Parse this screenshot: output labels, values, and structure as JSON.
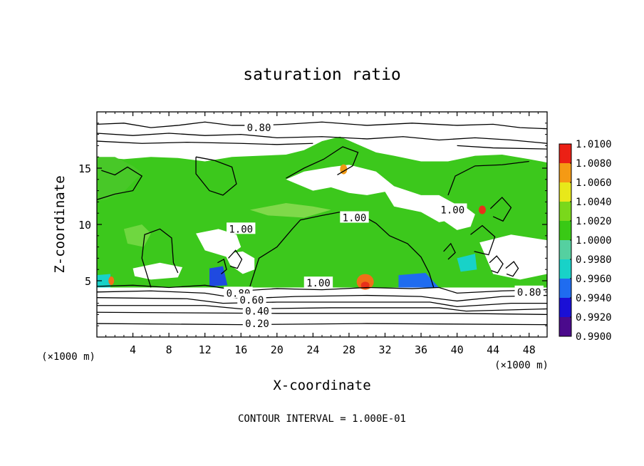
{
  "chart_data": {
    "type": "heatmap",
    "title": "saturation ratio",
    "xlabel": "X-coordinate",
    "ylabel": "Z-coordinate",
    "x_unit": "(×1000 m)",
    "z_unit": "(×1000 m)",
    "footer": "CONTOUR INTERVAL = 1.000E-01",
    "xlim": [
      0,
      50
    ],
    "ylim": [
      0,
      20
    ],
    "x_ticks": [
      4,
      8,
      12,
      16,
      20,
      24,
      28,
      32,
      36,
      40,
      44,
      48
    ],
    "y_ticks": [
      5,
      10,
      15
    ],
    "colorbar": {
      "range": [
        0.99,
        1.01
      ],
      "tick_labels": [
        "0.9900",
        "0.9920",
        "0.9940",
        "0.9960",
        "0.9980",
        "1.0000",
        "1.0020",
        "1.0040",
        "1.0060",
        "1.0080",
        "1.0100"
      ],
      "colors": [
        "#4b0a8c",
        "#1a0fd6",
        "#1f6cf0",
        "#18d2c8",
        "#55d0a0",
        "#39c915",
        "#7ad81b",
        "#e8e81a",
        "#f59a14",
        "#eb2015",
        "#f08a8a"
      ]
    },
    "contour_labels": [
      {
        "text": "0.80",
        "x": 18,
        "z": 18.6
      },
      {
        "text": "1.00",
        "x": 16,
        "z": 9.6
      },
      {
        "text": "1.00",
        "x": 28.6,
        "z": 10.6
      },
      {
        "text": "1.00",
        "x": 39.5,
        "z": 11.3
      },
      {
        "text": "1.00",
        "x": 24.6,
        "z": 4.8
      },
      {
        "text": "0.80",
        "x": 15.7,
        "z": 3.9
      },
      {
        "text": "0.60",
        "x": 17.2,
        "z": 3.3
      },
      {
        "text": "0.40",
        "x": 17.8,
        "z": 2.3
      },
      {
        "text": "0.20",
        "x": 17.8,
        "z": 1.2
      },
      {
        "text": "0.80",
        "x": 48.0,
        "z": 4.0
      }
    ]
  }
}
